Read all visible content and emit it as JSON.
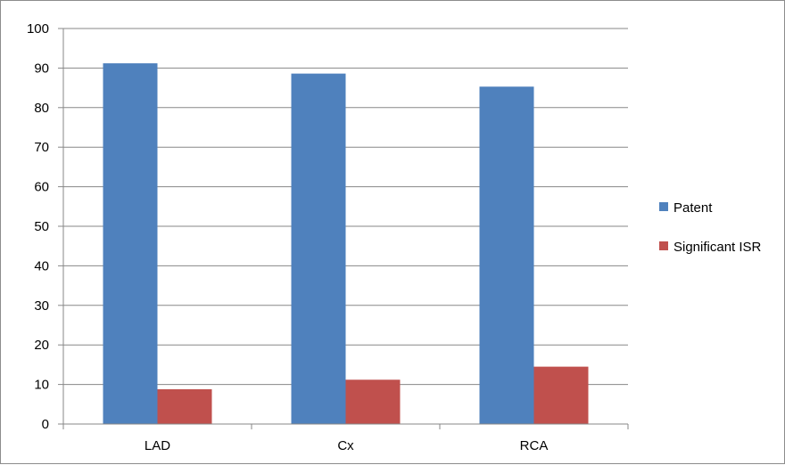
{
  "chart_data": {
    "type": "bar",
    "categories": [
      "LAD",
      "Cx",
      "RCA"
    ],
    "series": [
      {
        "name": "Patent",
        "values": [
          91.2,
          88.6,
          85.3
        ],
        "color": "#4f81bd"
      },
      {
        "name": "Significant ISR",
        "values": [
          8.8,
          11.2,
          14.5
        ],
        "color": "#c0504d"
      }
    ],
    "ylim": [
      0,
      100
    ],
    "yticks": [
      "0",
      "10",
      "20",
      "30",
      "40",
      "50",
      "60",
      "70",
      "80",
      "90",
      "100"
    ],
    "grid": true,
    "legend_position": "right",
    "title": "",
    "xlabel": "",
    "ylabel": ""
  }
}
